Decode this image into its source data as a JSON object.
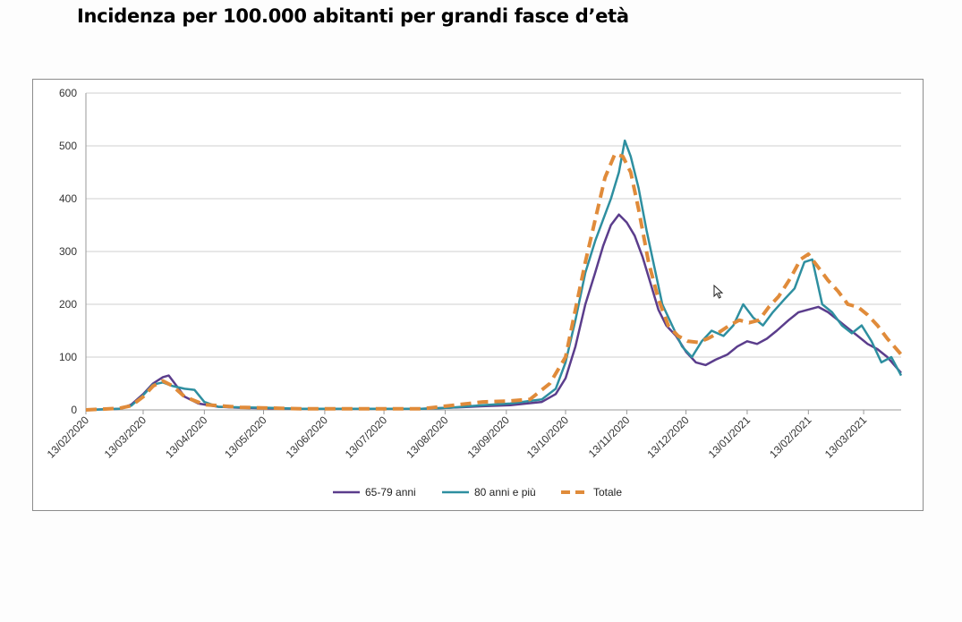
{
  "page": {
    "title": "Incidenza per 100.000 abitanti per grandi fasce d’età"
  },
  "chart_data": {
    "type": "line",
    "title": "Incidenza per 100.000 abitanti per grandi fasce d’età",
    "xlabel": "",
    "ylabel": "",
    "ylim": [
      0,
      600
    ],
    "yticks": [
      0,
      100,
      200,
      300,
      400,
      500,
      600
    ],
    "x_start": "13/02/2020",
    "x_end": "01/04/2021",
    "xticks": [
      "13/02/2020",
      "13/03/2020",
      "13/04/2020",
      "13/05/2020",
      "13/06/2020",
      "13/07/2020",
      "13/08/2020",
      "13/09/2020",
      "13/10/2020",
      "13/11/2020",
      "13/12/2020",
      "13/01/2021",
      "13/02/2021",
      "13/03/2021"
    ],
    "grid": "horizontal",
    "legend_position": "bottom",
    "series": [
      {
        "name": "65-79 anni",
        "color": "#5b3d8c",
        "dash": "solid",
        "points": [
          [
            "13/02/2020",
            0
          ],
          [
            "01/03/2020",
            2
          ],
          [
            "07/03/2020",
            10
          ],
          [
            "13/03/2020",
            30
          ],
          [
            "18/03/2020",
            50
          ],
          [
            "23/03/2020",
            62
          ],
          [
            "26/03/2020",
            65
          ],
          [
            "29/03/2020",
            50
          ],
          [
            "03/04/2020",
            25
          ],
          [
            "10/04/2020",
            12
          ],
          [
            "20/04/2020",
            6
          ],
          [
            "01/05/2020",
            4
          ],
          [
            "15/05/2020",
            3
          ],
          [
            "01/06/2020",
            2
          ],
          [
            "01/07/2020",
            2
          ],
          [
            "01/08/2020",
            2
          ],
          [
            "15/08/2020",
            4
          ],
          [
            "01/09/2020",
            7
          ],
          [
            "15/09/2020",
            9
          ],
          [
            "01/10/2020",
            15
          ],
          [
            "08/10/2020",
            30
          ],
          [
            "13/10/2020",
            60
          ],
          [
            "18/10/2020",
            120
          ],
          [
            "23/10/2020",
            200
          ],
          [
            "28/10/2020",
            260
          ],
          [
            "01/11/2020",
            310
          ],
          [
            "05/11/2020",
            350
          ],
          [
            "09/11/2020",
            370
          ],
          [
            "13/11/2020",
            355
          ],
          [
            "17/11/2020",
            330
          ],
          [
            "21/11/2020",
            290
          ],
          [
            "25/11/2020",
            240
          ],
          [
            "29/11/2020",
            190
          ],
          [
            "03/12/2020",
            160
          ],
          [
            "08/12/2020",
            140
          ],
          [
            "13/12/2020",
            110
          ],
          [
            "18/12/2020",
            90
          ],
          [
            "23/12/2020",
            85
          ],
          [
            "28/12/2020",
            95
          ],
          [
            "03/01/2021",
            105
          ],
          [
            "08/01/2021",
            120
          ],
          [
            "13/01/2021",
            130
          ],
          [
            "18/01/2021",
            125
          ],
          [
            "23/01/2021",
            135
          ],
          [
            "28/01/2021",
            150
          ],
          [
            "03/02/2021",
            170
          ],
          [
            "08/02/2021",
            185
          ],
          [
            "13/02/2021",
            190
          ],
          [
            "18/02/2021",
            195
          ],
          [
            "23/02/2021",
            185
          ],
          [
            "28/02/2021",
            170
          ],
          [
            "05/03/2021",
            155
          ],
          [
            "10/03/2021",
            140
          ],
          [
            "15/03/2021",
            125
          ],
          [
            "20/03/2021",
            115
          ],
          [
            "25/03/2021",
            100
          ],
          [
            "01/04/2021",
            70
          ]
        ]
      },
      {
        "name": "80 anni e più",
        "color": "#2e8fa0",
        "dash": "solid",
        "points": [
          [
            "13/02/2020",
            0
          ],
          [
            "01/03/2020",
            2
          ],
          [
            "07/03/2020",
            8
          ],
          [
            "13/03/2020",
            28
          ],
          [
            "18/03/2020",
            48
          ],
          [
            "23/03/2020",
            52
          ],
          [
            "28/03/2020",
            45
          ],
          [
            "03/04/2020",
            40
          ],
          [
            "08/04/2020",
            38
          ],
          [
            "13/04/2020",
            15
          ],
          [
            "20/04/2020",
            6
          ],
          [
            "01/05/2020",
            5
          ],
          [
            "15/05/2020",
            4
          ],
          [
            "01/06/2020",
            2
          ],
          [
            "01/07/2020",
            2
          ],
          [
            "01/08/2020",
            2
          ],
          [
            "15/08/2020",
            4
          ],
          [
            "01/09/2020",
            9
          ],
          [
            "15/09/2020",
            12
          ],
          [
            "01/10/2020",
            20
          ],
          [
            "08/10/2020",
            40
          ],
          [
            "13/10/2020",
            90
          ],
          [
            "18/10/2020",
            170
          ],
          [
            "23/10/2020",
            260
          ],
          [
            "28/10/2020",
            320
          ],
          [
            "01/11/2020",
            360
          ],
          [
            "05/11/2020",
            400
          ],
          [
            "09/11/2020",
            450
          ],
          [
            "12/11/2020",
            510
          ],
          [
            "15/11/2020",
            480
          ],
          [
            "19/11/2020",
            420
          ],
          [
            "23/11/2020",
            340
          ],
          [
            "27/11/2020",
            270
          ],
          [
            "01/12/2020",
            200
          ],
          [
            "06/12/2020",
            160
          ],
          [
            "11/12/2020",
            120
          ],
          [
            "16/12/2020",
            100
          ],
          [
            "21/12/2020",
            130
          ],
          [
            "26/12/2020",
            150
          ],
          [
            "01/01/2021",
            140
          ],
          [
            "06/01/2021",
            160
          ],
          [
            "11/01/2021",
            200
          ],
          [
            "16/01/2021",
            175
          ],
          [
            "21/01/2021",
            160
          ],
          [
            "26/01/2021",
            185
          ],
          [
            "01/02/2021",
            210
          ],
          [
            "06/02/2021",
            230
          ],
          [
            "11/02/2021",
            280
          ],
          [
            "15/02/2021",
            285
          ],
          [
            "20/02/2021",
            200
          ],
          [
            "25/02/2021",
            185
          ],
          [
            "02/03/2021",
            160
          ],
          [
            "07/03/2021",
            145
          ],
          [
            "12/03/2021",
            160
          ],
          [
            "17/03/2021",
            130
          ],
          [
            "22/03/2021",
            90
          ],
          [
            "27/03/2021",
            100
          ],
          [
            "01/04/2021",
            65
          ]
        ]
      },
      {
        "name": "Totale",
        "color": "#e08b3a",
        "dash": "dashed",
        "points": [
          [
            "13/02/2020",
            0
          ],
          [
            "01/03/2020",
            3
          ],
          [
            "07/03/2020",
            8
          ],
          [
            "13/03/2020",
            25
          ],
          [
            "18/03/2020",
            45
          ],
          [
            "23/03/2020",
            55
          ],
          [
            "28/03/2020",
            45
          ],
          [
            "03/04/2020",
            25
          ],
          [
            "13/04/2020",
            10
          ],
          [
            "01/05/2020",
            5
          ],
          [
            "01/06/2020",
            2
          ],
          [
            "01/07/2020",
            2
          ],
          [
            "01/08/2020",
            2
          ],
          [
            "20/08/2020",
            10
          ],
          [
            "01/09/2020",
            15
          ],
          [
            "15/09/2020",
            17
          ],
          [
            "25/09/2020",
            20
          ],
          [
            "05/10/2020",
            50
          ],
          [
            "13/10/2020",
            100
          ],
          [
            "18/10/2020",
            190
          ],
          [
            "23/10/2020",
            280
          ],
          [
            "28/10/2020",
            360
          ],
          [
            "02/11/2020",
            440
          ],
          [
            "07/11/2020",
            485
          ],
          [
            "11/11/2020",
            480
          ],
          [
            "15/11/2020",
            450
          ],
          [
            "19/11/2020",
            380
          ],
          [
            "24/11/2020",
            280
          ],
          [
            "29/11/2020",
            210
          ],
          [
            "04/12/2020",
            160
          ],
          [
            "09/12/2020",
            140
          ],
          [
            "14/12/2020",
            130
          ],
          [
            "19/12/2020",
            128
          ],
          [
            "24/12/2020",
            135
          ],
          [
            "29/12/2020",
            145
          ],
          [
            "04/01/2021",
            160
          ],
          [
            "09/01/2021",
            170
          ],
          [
            "14/01/2021",
            165
          ],
          [
            "19/01/2021",
            170
          ],
          [
            "24/01/2021",
            195
          ],
          [
            "29/01/2021",
            215
          ],
          [
            "04/02/2021",
            250
          ],
          [
            "09/02/2021",
            285
          ],
          [
            "13/02/2021",
            295
          ],
          [
            "18/02/2021",
            270
          ],
          [
            "23/02/2021",
            245
          ],
          [
            "28/02/2021",
            225
          ],
          [
            "05/03/2021",
            200
          ],
          [
            "10/03/2021",
            195
          ],
          [
            "15/03/2021",
            180
          ],
          [
            "20/03/2021",
            160
          ],
          [
            "25/03/2021",
            135
          ],
          [
            "01/04/2021",
            105
          ]
        ]
      }
    ]
  }
}
